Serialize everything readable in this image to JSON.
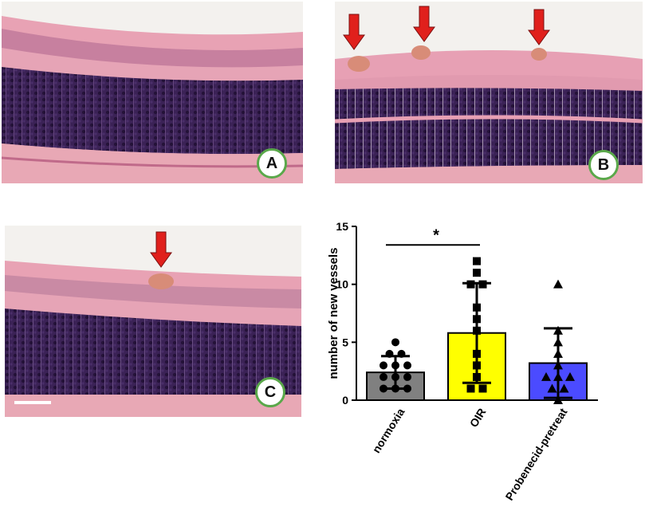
{
  "panels": [
    {
      "label": "A",
      "arrows": 0
    },
    {
      "label": "B",
      "arrows": 3
    },
    {
      "label": "C",
      "arrows": 1
    }
  ],
  "colors": {
    "vitreous": "#f3f1ee",
    "nerve_fiber": "#e9a9b6",
    "plexiform": "#e8a0b4",
    "nuclear": "#3a2154",
    "nuclear_dark": "#2a1542",
    "sclera": "#e6a6b3",
    "arrow": "#e0201c",
    "badge_border": "#5aa84a"
  },
  "chart_data": {
    "type": "bar",
    "categories": [
      "normoxia",
      "OIR",
      "Probenecid-pretreat"
    ],
    "values": [
      2.4,
      5.8,
      3.2
    ],
    "sd": [
      1.4,
      4.3,
      3.0
    ],
    "colors": [
      "#808080",
      "#ffff00",
      "#4b4bff"
    ],
    "markers": [
      "circle",
      "square",
      "triangle"
    ],
    "points": [
      [
        5,
        4,
        4,
        3,
        3,
        3,
        2,
        2,
        2,
        1,
        1,
        1
      ],
      [
        12,
        11,
        10,
        10,
        8,
        7,
        6,
        4,
        3,
        2,
        1,
        1
      ],
      [
        10,
        6,
        5,
        4,
        3,
        2,
        2,
        2,
        1,
        1,
        0
      ]
    ],
    "ylabel": "number of new vessels",
    "xlabel": "",
    "title": "",
    "ylim": [
      0,
      15
    ],
    "yticks": [
      0,
      5,
      10,
      15
    ],
    "significance": {
      "from": "normoxia",
      "to": "OIR",
      "label": "*"
    }
  }
}
